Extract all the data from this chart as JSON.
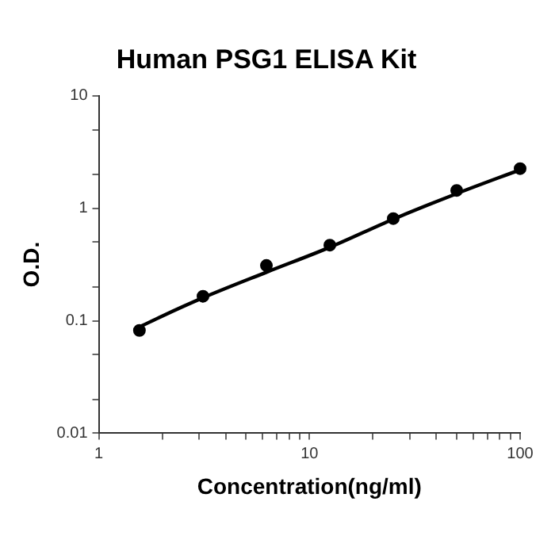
{
  "chart_data": {
    "type": "scatter",
    "title": "Human PSG1 ELISA Kit",
    "xlabel": "Concentration(ng/ml)",
    "ylabel": "O.D.",
    "log": "xy",
    "grid": false,
    "legend": false,
    "marker": "circle",
    "xlim": [
      1,
      100
    ],
    "ylim": [
      0.01,
      10
    ],
    "xticks": [
      1,
      {
        "value": 2,
        "label": null
      },
      {
        "value": 3,
        "label": null
      },
      {
        "value": 4,
        "label": null
      },
      {
        "value": 5,
        "label": null
      },
      {
        "value": 6,
        "label": null
      },
      {
        "value": 7,
        "label": null
      },
      {
        "value": 8,
        "label": null
      },
      {
        "value": 9,
        "label": null
      },
      10,
      {
        "value": 20,
        "label": null
      },
      {
        "value": 30,
        "label": null
      },
      {
        "value": 40,
        "label": null
      },
      {
        "value": 50,
        "label": null
      },
      {
        "value": 60,
        "label": null
      },
      {
        "value": 70,
        "label": null
      },
      {
        "value": 80,
        "label": null
      },
      {
        "value": 90,
        "label": null
      },
      100
    ],
    "yticks": [
      0.01,
      {
        "value": 0.02,
        "label": null
      },
      {
        "value": 0.05,
        "label": null
      },
      0.1,
      {
        "value": 0.2,
        "label": null
      },
      {
        "value": 0.5,
        "label": null
      },
      1,
      {
        "value": 2,
        "label": null
      },
      {
        "value": 5,
        "label": null
      },
      10
    ],
    "series": [
      {
        "color": "#000000",
        "x": [
          1.56,
          3.125,
          6.25,
          12.5,
          25,
          50,
          100
        ],
        "values": [
          0.082,
          0.165,
          0.31,
          0.47,
          0.81,
          1.44,
          2.25
        ]
      },
      {
        "type": "line",
        "color": "#000000",
        "marker": "none",
        "line_style": "solid",
        "x": [
          1.6,
          2,
          3.125,
          6.25,
          12.5,
          25,
          50,
          100
        ],
        "values": [
          0.09,
          0.11,
          0.16,
          0.27,
          0.45,
          0.8,
          1.35,
          2.2
        ]
      }
    ]
  }
}
